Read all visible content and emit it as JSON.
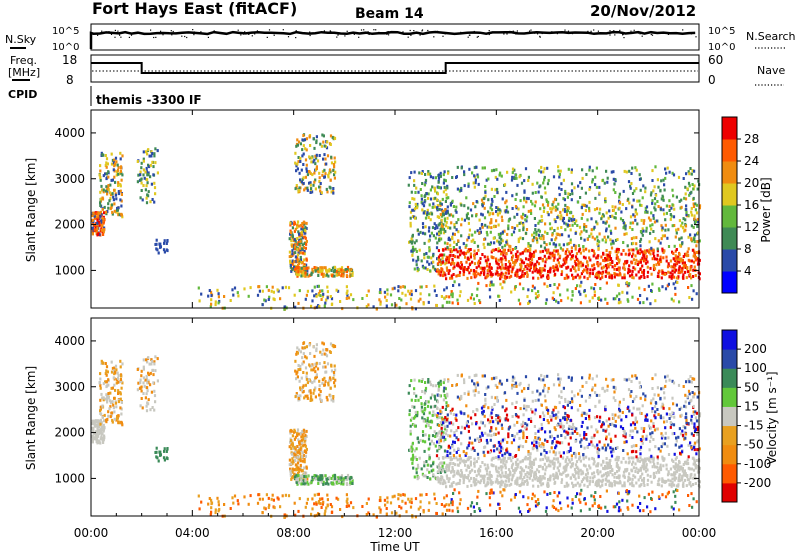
{
  "header": {
    "station": "Fort Hays East (fitACF)",
    "beam": "Beam 14",
    "date": "20/Nov/2012"
  },
  "noise_panel": {
    "left_label": "N.Sky",
    "left_ticks": [
      "10^5",
      "10^0"
    ],
    "right_ticks": [
      "10^5",
      "10^0"
    ],
    "right_label": "N.Search"
  },
  "freq_panel": {
    "left_label_1": "Freq.",
    "left_label_2": "[MHz]",
    "left_ticks": [
      "18",
      "8"
    ],
    "right_ticks": [
      "60",
      "0"
    ],
    "right_label": "Nave",
    "cpid_label": "CPID",
    "cpid_value": "themis -3300 IF"
  },
  "colors": {
    "power": [
      "#0000ff",
      "#2a4aa8",
      "#3f8a55",
      "#62b83c",
      "#e0c820",
      "#f08c10",
      "#ff5a00",
      "#ee0000"
    ],
    "velocity": [
      "#e00000",
      "#ff5a00",
      "#f08c10",
      "#e8a020",
      "#c8c8c0",
      "#62c83a",
      "#3a8a58",
      "#2a4aa8",
      "#1010e0"
    ]
  },
  "chart_data": [
    {
      "type": "heatmap",
      "title": "Power",
      "ylabel": "Slant Range [km]",
      "xlabel": "",
      "ylim": [
        180,
        4500
      ],
      "y_ticks": [
        1000,
        2000,
        3000,
        4000
      ],
      "colorbar_label": "Power [dB]",
      "colorbar_ticks": [
        "4",
        "8",
        "12",
        "16",
        "20",
        "24",
        "28"
      ],
      "colorbar_range": [
        0,
        32
      ]
    },
    {
      "type": "heatmap",
      "title": "Velocity",
      "ylabel": "Slant Range [km]",
      "xlabel": "Time UT",
      "ylim": [
        180,
        4500
      ],
      "y_ticks": [
        1000,
        2000,
        3000,
        4000
      ],
      "colorbar_label": "Velocity [m s⁻¹]",
      "colorbar_ticks": [
        "-200",
        "-100",
        "-50",
        "-15",
        "15",
        "50",
        "100",
        "200"
      ],
      "x_ticks": [
        "00:00",
        "04:00",
        "08:00",
        "12:00",
        "16:00",
        "20:00",
        "00:00"
      ],
      "xlim_hours": [
        0,
        24
      ]
    }
  ]
}
